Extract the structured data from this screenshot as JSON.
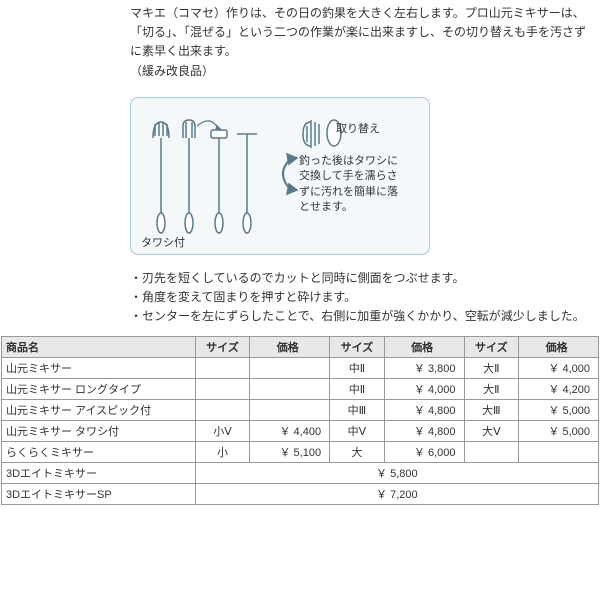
{
  "desc": {
    "p1": "マキエ（コマセ）作りは、その日の釣果を大きく左右します。プロ山元ミキサーは、「切る」、「混ぜる」という二つの作業が楽に出来ますし、その切り替えも手を汚さずに素早く出来ます。",
    "p2": "（緩み改良品）"
  },
  "diagram": {
    "label_tawashi": "タワシ付",
    "label_torikae": "取り替え",
    "caption": "釣った後はタワシに交換して手を濡らさずに汚れを簡単に落とせます。"
  },
  "notes": {
    "n1": "・刃先を短くしているのでカットと同時に側面をつぶせます。",
    "n2": "・角度を変えて固まりを押すと砕けます。",
    "n3": "・センターを左にずらしたことで、右側に加重が強くかかり、空転が減少しました。"
  },
  "table": {
    "headers": [
      "商品名",
      "サイズ",
      "価格",
      "サイズ",
      "価格",
      "サイズ",
      "価格"
    ],
    "rows": [
      {
        "name": "山元ミキサー",
        "c1s": "",
        "c1p": "",
        "c2s": "中Ⅱ",
        "c2p": "￥ 3,800",
        "c3s": "大Ⅱ",
        "c3p": "￥ 4,000"
      },
      {
        "name": "山元ミキサー ロングタイプ",
        "c1s": "",
        "c1p": "",
        "c2s": "中Ⅱ",
        "c2p": "￥ 4,000",
        "c3s": "大Ⅱ",
        "c3p": "￥ 4,200"
      },
      {
        "name": "山元ミキサー アイスピック付",
        "c1s": "",
        "c1p": "",
        "c2s": "中Ⅲ",
        "c2p": "￥ 4,800",
        "c3s": "大Ⅲ",
        "c3p": "￥ 5,000"
      },
      {
        "name": "山元ミキサー タワシ付",
        "c1s": "小Ⅴ",
        "c1p": "￥ 4,400",
        "c2s": "中Ⅴ",
        "c2p": "￥ 4,800",
        "c3s": "大Ⅴ",
        "c3p": "￥ 5,000"
      },
      {
        "name": "らくらくミキサー",
        "c1s": "小",
        "c1p": "￥ 5,100",
        "c2s": "大",
        "c2p": "￥ 6,000",
        "c3s": "",
        "c3p": ""
      }
    ],
    "spanRows": [
      {
        "name": "3Dエイトミキサー",
        "price": "￥ 5,800"
      },
      {
        "name": "3DエイトミキサーSP",
        "price": "￥ 7,200"
      }
    ]
  },
  "style": {
    "border_color": "#a8c8d8",
    "diagram_bg": "#f4f8fa",
    "table_header_bg": "#e8e8e8",
    "text_color": "#333"
  }
}
